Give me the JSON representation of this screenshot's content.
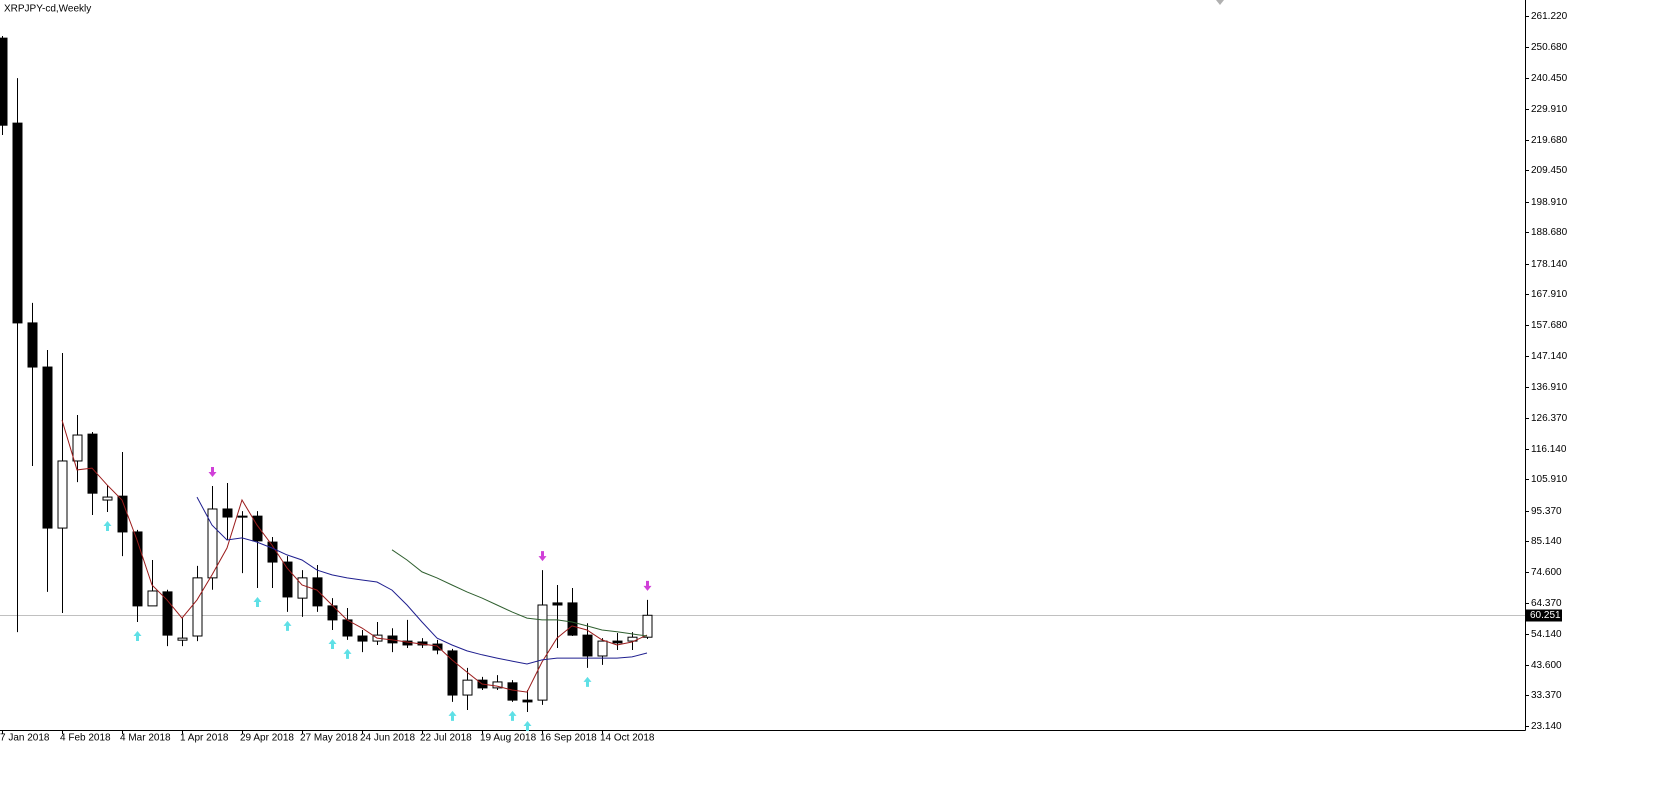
{
  "chart_data": {
    "type": "candlestick",
    "title": "XRPJPY-cd,Weekly",
    "categories": [
      "7 Jan 2018",
      null,
      null,
      null,
      "4 Feb 2018",
      null,
      null,
      null,
      "4 Mar 2018",
      null,
      null,
      null,
      "1 Apr 2018",
      null,
      null,
      null,
      "29 Apr 2018",
      null,
      null,
      null,
      "27 May 2018",
      null,
      null,
      null,
      "24 Jun 2018",
      null,
      null,
      null,
      "22 Jul 2018",
      null,
      null,
      null,
      "19 Aug 2018",
      null,
      null,
      null,
      "16 Sep 2018",
      null,
      null,
      null,
      "14 Oct 2018",
      null,
      null,
      null
    ],
    "open": [
      253.8,
      225.3,
      158.3,
      143.5,
      89.5,
      112.0,
      121.0,
      98.9,
      100.2,
      88.2,
      63.4,
      68.1,
      51.9,
      53.3,
      72.8,
      95.9,
      93.5,
      93.5,
      84.8,
      78.1,
      66.0,
      72.8,
      63.4,
      58.7,
      53.3,
      51.6,
      53.3,
      51.6,
      51.3,
      50.6,
      48.3,
      33.5,
      38.5,
      35.9,
      37.6,
      31.8,
      31.8,
      64.4,
      64.4,
      53.6,
      46.6,
      51.6,
      51.6,
      52.9
    ],
    "high": [
      254.5,
      240.4,
      165.0,
      149.2,
      148.2,
      127.4,
      121.7,
      103.9,
      115.0,
      88.9,
      78.8,
      68.8,
      59.3,
      76.8,
      103.6,
      104.6,
      95.2,
      95.2,
      86.5,
      80.1,
      75.4,
      77.1,
      66.0,
      62.7,
      55.3,
      58.0,
      55.9,
      58.7,
      52.6,
      52.0,
      49.0,
      42.6,
      39.6,
      40.2,
      38.5,
      35.2,
      75.4,
      70.4,
      69.4,
      57.6,
      52.6,
      54.3,
      54.6,
      65.4
    ],
    "low": [
      221.3,
      54.6,
      110.3,
      68.1,
      61.0,
      104.9,
      93.9,
      94.9,
      80.1,
      58.0,
      63.4,
      49.9,
      49.9,
      51.6,
      68.8,
      85.5,
      74.4,
      69.4,
      69.4,
      61.4,
      59.7,
      61.4,
      55.3,
      52.0,
      47.9,
      50.3,
      47.9,
      49.3,
      49.3,
      47.2,
      31.2,
      28.5,
      35.2,
      35.2,
      31.2,
      27.8,
      30.2,
      49.3,
      53.3,
      42.6,
      43.6,
      48.6,
      48.6,
      52.3
    ],
    "close": [
      224.6,
      158.3,
      143.5,
      89.5,
      112.0,
      120.7,
      101.2,
      99.9,
      88.2,
      63.4,
      68.4,
      53.6,
      52.6,
      72.8,
      95.9,
      93.2,
      93.2,
      85.2,
      78.1,
      66.4,
      72.8,
      63.4,
      58.7,
      53.3,
      51.6,
      53.6,
      51.0,
      50.3,
      50.3,
      48.6,
      33.5,
      38.5,
      35.9,
      37.9,
      31.8,
      31.2,
      63.7,
      63.7,
      53.6,
      46.6,
      51.6,
      51.0,
      52.9,
      60.251
    ],
    "overlays": [
      {
        "color": "#9b1b1b",
        "values": [
          null,
          null,
          null,
          null,
          125.7,
          109.0,
          109.6,
          104.0,
          98.9,
          85.5,
          70.4,
          65.4,
          59.3,
          65.4,
          73.8,
          82.8,
          98.9,
          90.5,
          83.8,
          76.1,
          70.4,
          68.7,
          63.7,
          58.7,
          56.0,
          52.6,
          52.0,
          51.3,
          50.6,
          50.0,
          45.3,
          41.2,
          37.2,
          36.5,
          35.2,
          34.5,
          44.6,
          52.6,
          56.7,
          55.3,
          52.0,
          50.3,
          51.3,
          53.6
        ]
      },
      {
        "color": "#1f1f8f",
        "values": [
          null,
          null,
          null,
          null,
          null,
          null,
          null,
          null,
          null,
          null,
          null,
          null,
          null,
          99.9,
          90.5,
          85.5,
          86.2,
          84.8,
          82.8,
          80.5,
          78.8,
          75.4,
          73.8,
          72.8,
          72.1,
          71.4,
          68.7,
          63.7,
          58.0,
          52.6,
          50.3,
          48.3,
          47.0,
          45.9,
          44.9,
          43.9,
          45.3,
          45.9,
          45.9,
          45.9,
          45.9,
          45.9,
          46.3,
          47.6
        ]
      },
      {
        "color": "#2f5f2f",
        "values": [
          null,
          null,
          null,
          null,
          null,
          null,
          null,
          null,
          null,
          null,
          null,
          null,
          null,
          null,
          null,
          null,
          null,
          null,
          null,
          null,
          null,
          null,
          null,
          null,
          null,
          null,
          82.2,
          78.8,
          74.8,
          72.8,
          70.4,
          68.1,
          66.0,
          63.7,
          61.4,
          59.3,
          58.7,
          58.7,
          58.0,
          56.7,
          55.3,
          54.7,
          54.0,
          53.3
        ]
      }
    ],
    "up_arrows": [
      7,
      9,
      17,
      19,
      22,
      23,
      30,
      34,
      35,
      39
    ],
    "down_arrows": [
      14,
      36,
      43
    ],
    "up_color": "#5fe0e6",
    "down_color": "#d040d8",
    "bull_color": "#ffffff",
    "bear_color": "#000000",
    "last_price": 60.251,
    "ylim": [
      21.78,
      266.59
    ],
    "yticks": [
      {
        "value": 261.22,
        "label": "261.220"
      },
      {
        "value": 250.68,
        "label": "250.680"
      },
      {
        "value": 240.45,
        "label": "240.450"
      },
      {
        "value": 229.91,
        "label": "229.910"
      },
      {
        "value": 219.68,
        "label": "219.680"
      },
      {
        "value": 209.45,
        "label": "209.450"
      },
      {
        "value": 198.91,
        "label": "198.910"
      },
      {
        "value": 188.68,
        "label": "188.680"
      },
      {
        "value": 178.14,
        "label": "178.140"
      },
      {
        "value": 167.91,
        "label": "167.910"
      },
      {
        "value": 157.68,
        "label": "157.680"
      },
      {
        "value": 147.14,
        "label": "147.140"
      },
      {
        "value": 136.91,
        "label": "136.910"
      },
      {
        "value": 126.37,
        "label": "126.370"
      },
      {
        "value": 116.14,
        "label": "116.140"
      },
      {
        "value": 105.91,
        "label": "105.910"
      },
      {
        "value": 95.37,
        "label": "95.370"
      },
      {
        "value": 85.14,
        "label": "85.140"
      },
      {
        "value": 74.6,
        "label": "74.600"
      },
      {
        "value": 64.37,
        "label": "64.370"
      },
      {
        "value": 54.14,
        "label": "54.140"
      },
      {
        "value": 43.6,
        "label": "43.600"
      },
      {
        "value": 33.37,
        "label": "33.370"
      },
      {
        "value": 23.14,
        "label": "23.140"
      }
    ],
    "grid": false
  }
}
